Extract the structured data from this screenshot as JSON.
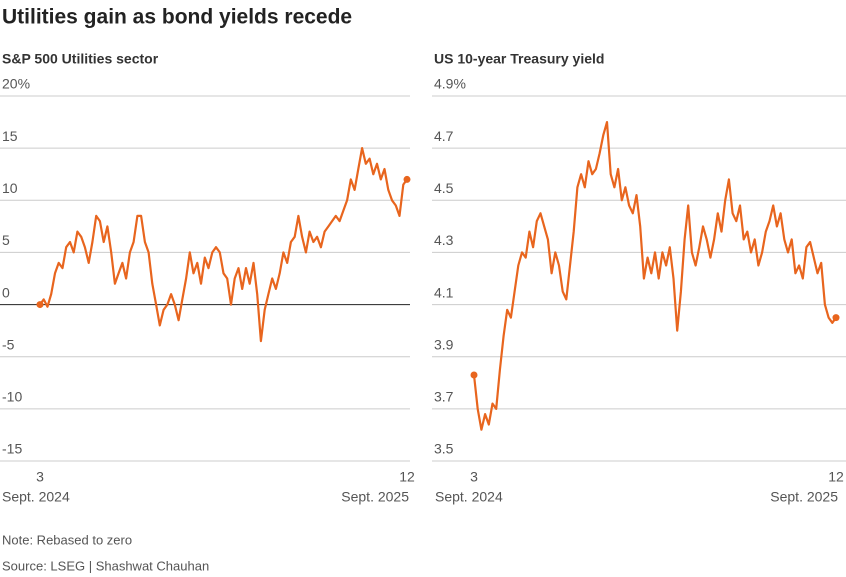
{
  "title": "Utilities gain as bond yields recede",
  "note": "Note: Rebased to zero",
  "source": "Source: LSEG | Shashwat Chauhan",
  "chart_data": [
    {
      "type": "line",
      "title": "S&P 500 Utilities sector",
      "color": "#e8651e",
      "zero_line": true,
      "end_markers": true,
      "grid": true,
      "categories": [
        "3",
        null,
        null,
        null,
        null,
        null,
        null,
        null,
        null,
        null,
        null,
        null,
        null,
        null,
        null,
        null,
        null,
        null,
        null,
        null,
        null,
        null,
        null,
        null,
        null,
        null,
        null,
        null,
        null,
        null,
        null,
        null,
        null,
        null,
        null,
        null,
        null,
        null,
        null,
        null,
        null,
        null,
        null,
        null,
        null,
        null,
        null,
        null,
        null,
        null,
        null,
        null,
        null,
        null,
        null,
        null,
        null,
        null,
        null,
        null,
        null,
        null,
        null,
        null,
        null,
        null,
        null,
        null,
        null,
        null,
        null,
        null,
        null,
        null,
        null,
        null,
        null,
        null,
        null,
        null,
        null,
        null,
        null,
        null,
        null,
        null,
        null,
        null,
        null,
        null,
        null,
        null,
        null,
        null,
        null,
        null,
        null,
        null,
        "12"
      ],
      "period_labels": [
        "Sept. 2024",
        "Sept. 2025"
      ],
      "values": [
        0,
        0.5,
        -0.2,
        1,
        3,
        4,
        3.5,
        5.5,
        6,
        5,
        7,
        6.5,
        5.5,
        4,
        6,
        8.5,
        8,
        6,
        7.5,
        5,
        2,
        3,
        4,
        2.5,
        5,
        6,
        8.5,
        8.5,
        6,
        5,
        2,
        0,
        -2,
        -0.5,
        0,
        1,
        0,
        -1.5,
        0.5,
        2.5,
        5,
        3,
        4,
        2,
        4.5,
        3.5,
        5,
        5.5,
        5,
        3,
        2.5,
        0,
        2.5,
        3.5,
        1.5,
        3.5,
        2,
        4,
        1,
        -3.5,
        -0.5,
        1,
        2.5,
        1.5,
        3,
        5,
        4,
        6,
        6.5,
        8.5,
        6.5,
        5,
        7,
        6,
        6.5,
        5.5,
        7,
        7.5,
        8,
        8.5,
        8,
        9,
        10,
        12,
        11,
        13,
        15,
        13.5,
        14,
        12.5,
        13.5,
        12,
        13,
        11,
        10,
        9.5,
        8.5,
        11.5,
        12
      ],
      "ylim": [
        -15,
        20
      ],
      "yticks": [
        {
          "value": 20,
          "label": "20%"
        },
        15,
        10,
        5,
        0,
        -5,
        -10,
        -15
      ]
    },
    {
      "type": "line",
      "title": "US 10-year Treasury yield",
      "color": "#e8651e",
      "zero_line": false,
      "end_markers": true,
      "grid": true,
      "categories": [
        "3",
        null,
        null,
        null,
        null,
        null,
        null,
        null,
        null,
        null,
        null,
        null,
        null,
        null,
        null,
        null,
        null,
        null,
        null,
        null,
        null,
        null,
        null,
        null,
        null,
        null,
        null,
        null,
        null,
        null,
        null,
        null,
        null,
        null,
        null,
        null,
        null,
        null,
        null,
        null,
        null,
        null,
        null,
        null,
        null,
        null,
        null,
        null,
        null,
        null,
        null,
        null,
        null,
        null,
        null,
        null,
        null,
        null,
        null,
        null,
        null,
        null,
        null,
        null,
        null,
        null,
        null,
        null,
        null,
        null,
        null,
        null,
        null,
        null,
        null,
        null,
        null,
        null,
        null,
        null,
        null,
        null,
        null,
        null,
        null,
        null,
        null,
        null,
        null,
        null,
        null,
        null,
        null,
        null,
        null,
        null,
        null,
        null,
        "12"
      ],
      "period_labels": [
        "Sept. 2024",
        "Sept. 2025"
      ],
      "values": [
        3.83,
        3.7,
        3.62,
        3.68,
        3.64,
        3.72,
        3.7,
        3.85,
        3.98,
        4.08,
        4.05,
        4.15,
        4.25,
        4.3,
        4.28,
        4.38,
        4.32,
        4.42,
        4.45,
        4.4,
        4.35,
        4.22,
        4.3,
        4.25,
        4.15,
        4.12,
        4.25,
        4.38,
        4.55,
        4.6,
        4.55,
        4.65,
        4.6,
        4.62,
        4.68,
        4.75,
        4.8,
        4.6,
        4.55,
        4.62,
        4.5,
        4.55,
        4.48,
        4.45,
        4.52,
        4.4,
        4.2,
        4.28,
        4.22,
        4.3,
        4.2,
        4.3,
        4.25,
        4.32,
        4.2,
        4.0,
        4.15,
        4.35,
        4.48,
        4.3,
        4.25,
        4.32,
        4.4,
        4.35,
        4.28,
        4.35,
        4.45,
        4.38,
        4.5,
        4.58,
        4.45,
        4.42,
        4.48,
        4.35,
        4.38,
        4.3,
        4.35,
        4.25,
        4.3,
        4.38,
        4.42,
        4.48,
        4.4,
        4.45,
        4.35,
        4.3,
        4.35,
        4.22,
        4.25,
        4.2,
        4.32,
        4.34,
        4.28,
        4.22,
        4.26,
        4.1,
        4.05,
        4.03,
        4.05
      ],
      "ylim": [
        3.5,
        4.9
      ],
      "yticks": [
        {
          "value": 4.9,
          "label": "4.9%"
        },
        4.7,
        4.5,
        4.3,
        4.1,
        3.9,
        3.7,
        3.5
      ]
    }
  ]
}
